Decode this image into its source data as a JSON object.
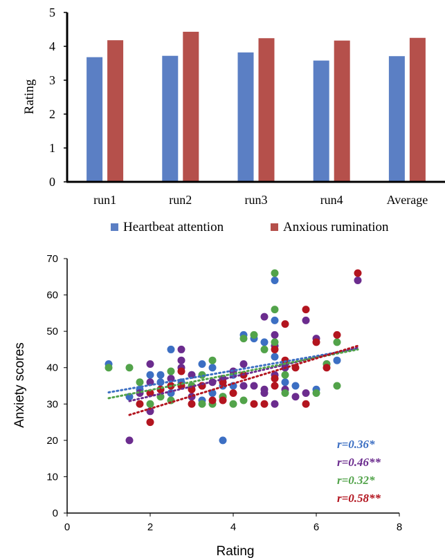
{
  "chart_data": [
    {
      "type": "bar",
      "ylabel": "Rating",
      "ylim": [
        0,
        5
      ],
      "yticks": [
        "0",
        "1",
        "2",
        "3",
        "4",
        "5"
      ],
      "categories": [
        "run1",
        "run2",
        "run3",
        "run4",
        "Average"
      ],
      "series": [
        {
          "name": "Heartbeat attention",
          "color": "#5b7fc4",
          "values": [
            3.68,
            3.72,
            3.82,
            3.58,
            3.71
          ]
        },
        {
          "name": "Anxious rumination",
          "color": "#b5504b",
          "values": [
            4.18,
            4.43,
            4.24,
            4.17,
            4.25
          ]
        }
      ],
      "legend_position": "bottom",
      "grid": false
    },
    {
      "type": "scatter",
      "xlabel": "Rating",
      "ylabel": "Anxiety scores",
      "xlim": [
        0,
        8
      ],
      "ylim": [
        0,
        70
      ],
      "xticks": [
        "0",
        "2",
        "4",
        "6",
        "8"
      ],
      "yticks": [
        "0",
        "10",
        "20",
        "30",
        "40",
        "50",
        "60",
        "70"
      ],
      "grid": false,
      "series": [
        {
          "color": "#3c6fc3",
          "r_label": "r=0.36*",
          "trend": {
            "x1": 1.0,
            "y1": 33.2,
            "x2": 7.0,
            "y2": 45.2
          },
          "points": [
            [
              1.0,
              41
            ],
            [
              1.5,
              32
            ],
            [
              1.75,
              34
            ],
            [
              2.0,
              38
            ],
            [
              2.25,
              38
            ],
            [
              2.25,
              36
            ],
            [
              2.5,
              45
            ],
            [
              2.5,
              33
            ],
            [
              2.75,
              36
            ],
            [
              3.0,
              38
            ],
            [
              3.25,
              41
            ],
            [
              3.25,
              31
            ],
            [
              3.5,
              40
            ],
            [
              3.5,
              33
            ],
            [
              3.75,
              20
            ],
            [
              3.75,
              35
            ],
            [
              4.0,
              38
            ],
            [
              4.0,
              35
            ],
            [
              4.25,
              49
            ],
            [
              4.5,
              48
            ],
            [
              4.75,
              47
            ],
            [
              5.0,
              64
            ],
            [
              5.0,
              53
            ],
            [
              5.0,
              43
            ],
            [
              5.25,
              36
            ],
            [
              5.25,
              41
            ],
            [
              5.5,
              35
            ],
            [
              6.0,
              34
            ],
            [
              6.5,
              42
            ]
          ]
        },
        {
          "color": "#6b2c8e",
          "r_label": "r=0.46**",
          "trend": {
            "x1": 1.5,
            "y1": 30.8,
            "x2": 7.0,
            "y2": 45.5
          },
          "points": [
            [
              1.5,
              20
            ],
            [
              1.75,
              33
            ],
            [
              2.0,
              41
            ],
            [
              2.0,
              36
            ],
            [
              2.0,
              28
            ],
            [
              2.25,
              34
            ],
            [
              2.5,
              37
            ],
            [
              2.75,
              45
            ],
            [
              2.75,
              42
            ],
            [
              2.75,
              40
            ],
            [
              3.0,
              38
            ],
            [
              3.0,
              32
            ],
            [
              3.25,
              35
            ],
            [
              3.5,
              36
            ],
            [
              3.75,
              37
            ],
            [
              3.75,
              32
            ],
            [
              4.0,
              39
            ],
            [
              4.25,
              41
            ],
            [
              4.25,
              35
            ],
            [
              4.5,
              35
            ],
            [
              4.75,
              54
            ],
            [
              4.75,
              34
            ],
            [
              4.75,
              33
            ],
            [
              5.0,
              49
            ],
            [
              5.0,
              46
            ],
            [
              5.0,
              38
            ],
            [
              5.0,
              30
            ],
            [
              5.25,
              40
            ],
            [
              5.25,
              34
            ],
            [
              5.5,
              32
            ],
            [
              5.75,
              53
            ],
            [
              5.75,
              33
            ],
            [
              6.0,
              48
            ],
            [
              6.25,
              41
            ],
            [
              7.0,
              64
            ]
          ]
        },
        {
          "color": "#52a34a",
          "r_label": "r=0.32*",
          "trend": {
            "x1": 1.0,
            "y1": 31.6,
            "x2": 7.0,
            "y2": 45.0
          },
          "points": [
            [
              1.0,
              40
            ],
            [
              1.5,
              40
            ],
            [
              1.75,
              36
            ],
            [
              2.0,
              30
            ],
            [
              2.25,
              32
            ],
            [
              2.5,
              39
            ],
            [
              2.5,
              31
            ],
            [
              2.75,
              35
            ],
            [
              3.0,
              35
            ],
            [
              3.25,
              30
            ],
            [
              3.25,
              38
            ],
            [
              3.5,
              42
            ],
            [
              3.5,
              30
            ],
            [
              3.75,
              32
            ],
            [
              4.0,
              30
            ],
            [
              4.25,
              31
            ],
            [
              4.25,
              48
            ],
            [
              4.5,
              49
            ],
            [
              4.75,
              45
            ],
            [
              5.0,
              66
            ],
            [
              5.0,
              56
            ],
            [
              5.0,
              47
            ],
            [
              5.25,
              38
            ],
            [
              5.25,
              33
            ],
            [
              6.0,
              33
            ],
            [
              6.25,
              41
            ],
            [
              6.5,
              47
            ],
            [
              6.5,
              35
            ]
          ]
        },
        {
          "color": "#b3151f",
          "r_label": "r=0.58**",
          "trend": {
            "x1": 1.5,
            "y1": 27.0,
            "x2": 7.0,
            "y2": 46.0
          },
          "points": [
            [
              1.75,
              30
            ],
            [
              2.0,
              25
            ],
            [
              2.0,
              33
            ],
            [
              2.25,
              34
            ],
            [
              2.5,
              35
            ],
            [
              2.75,
              39
            ],
            [
              2.75,
              35
            ],
            [
              3.0,
              30
            ],
            [
              3.0,
              34
            ],
            [
              3.25,
              35
            ],
            [
              3.5,
              31
            ],
            [
              3.75,
              31
            ],
            [
              3.75,
              36
            ],
            [
              4.0,
              33
            ],
            [
              4.25,
              38
            ],
            [
              4.5,
              30
            ],
            [
              4.75,
              30
            ],
            [
              5.0,
              45
            ],
            [
              5.0,
              37
            ],
            [
              5.0,
              35
            ],
            [
              5.25,
              42
            ],
            [
              5.25,
              52
            ],
            [
              5.5,
              40
            ],
            [
              5.75,
              56
            ],
            [
              5.75,
              30
            ],
            [
              6.0,
              47
            ],
            [
              6.25,
              40
            ],
            [
              6.5,
              49
            ],
            [
              7.0,
              66
            ]
          ]
        }
      ]
    }
  ]
}
